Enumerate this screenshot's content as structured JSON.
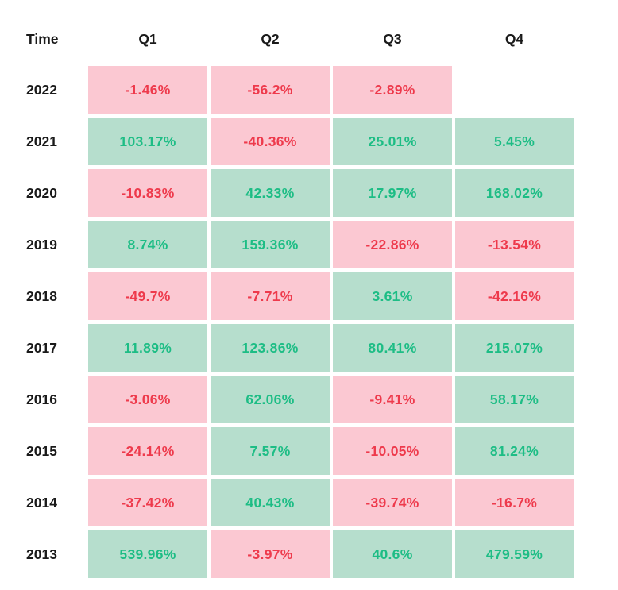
{
  "colors": {
    "positive_bg": "#b6decd",
    "positive_text": "#1dbd85",
    "negative_bg": "#fbc8d2",
    "negative_text": "#ee3a4c",
    "header_text": "#1a1a1a",
    "page_bg": "#ffffff"
  },
  "chart_data": {
    "type": "heatmap",
    "corner_label": "Time",
    "x_labels": [
      "Q1",
      "Q2",
      "Q3",
      "Q4"
    ],
    "y_labels": [
      "2022",
      "2021",
      "2020",
      "2019",
      "2018",
      "2017",
      "2016",
      "2015",
      "2014",
      "2013"
    ],
    "display_values": [
      [
        "-1.46%",
        "-56.2%",
        "-2.89%",
        null
      ],
      [
        "103.17%",
        "-40.36%",
        "25.01%",
        "5.45%"
      ],
      [
        "-10.83%",
        "42.33%",
        "17.97%",
        "168.02%"
      ],
      [
        "8.74%",
        "159.36%",
        "-22.86%",
        "-13.54%"
      ],
      [
        "-49.7%",
        "-7.71%",
        "3.61%",
        "-42.16%"
      ],
      [
        "11.89%",
        "123.86%",
        "80.41%",
        "215.07%"
      ],
      [
        "-3.06%",
        "62.06%",
        "-9.41%",
        "58.17%"
      ],
      [
        "-24.14%",
        "7.57%",
        "-10.05%",
        "81.24%"
      ],
      [
        "-37.42%",
        "40.43%",
        "-39.74%",
        "-16.7%"
      ],
      [
        "539.96%",
        "-3.97%",
        "40.6%",
        "479.59%"
      ]
    ],
    "values_pct": [
      [
        -1.46,
        -56.2,
        -2.89,
        null
      ],
      [
        103.17,
        -40.36,
        25.01,
        5.45
      ],
      [
        -10.83,
        42.33,
        17.97,
        168.02
      ],
      [
        8.74,
        159.36,
        -22.86,
        -13.54
      ],
      [
        -49.7,
        -7.71,
        3.61,
        -42.16
      ],
      [
        11.89,
        123.86,
        80.41,
        215.07
      ],
      [
        -3.06,
        62.06,
        -9.41,
        58.17
      ],
      [
        -24.14,
        7.57,
        -10.05,
        81.24
      ],
      [
        -37.42,
        40.43,
        -39.74,
        -16.7
      ],
      [
        539.96,
        -3.97,
        40.6,
        479.59
      ]
    ],
    "cell_color_rule": "positive values on green background, negative values on pink background, missing values blank",
    "legend_position": "none",
    "grid": false
  }
}
